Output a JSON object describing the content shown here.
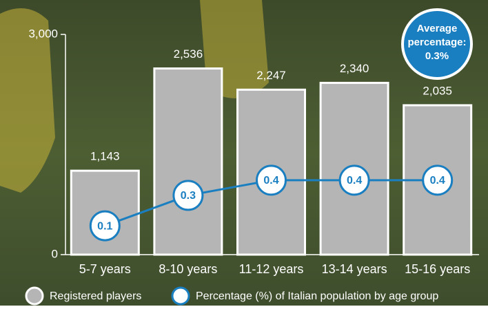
{
  "chart_data": {
    "type": "bar",
    "categories": [
      "5-7 years",
      "8-10 years",
      "11-12 years",
      "13-14 years",
      "15-16 years"
    ],
    "series": [
      {
        "name": "Registered players",
        "color": "#b5b5b5",
        "values": [
          1143,
          2536,
          2247,
          2340,
          2035
        ],
        "value_labels": [
          "1,143",
          "2,536",
          "2,247",
          "2,340",
          "2,035"
        ]
      },
      {
        "name": "Percentage (%) of Italian population by age group",
        "color": "#1a7fc1",
        "type": "line",
        "axis": "y2",
        "values": [
          0.1,
          0.3,
          0.4,
          0.4,
          0.4
        ]
      }
    ],
    "ylim": [
      0,
      3000
    ],
    "yticks": [
      0,
      {
        "value": 3000,
        "label": "3,000"
      }
    ],
    "y2lim": [
      -0.09,
      1.36
    ],
    "annotation": [
      "Average",
      "percentage:",
      "0.3%"
    ]
  }
}
